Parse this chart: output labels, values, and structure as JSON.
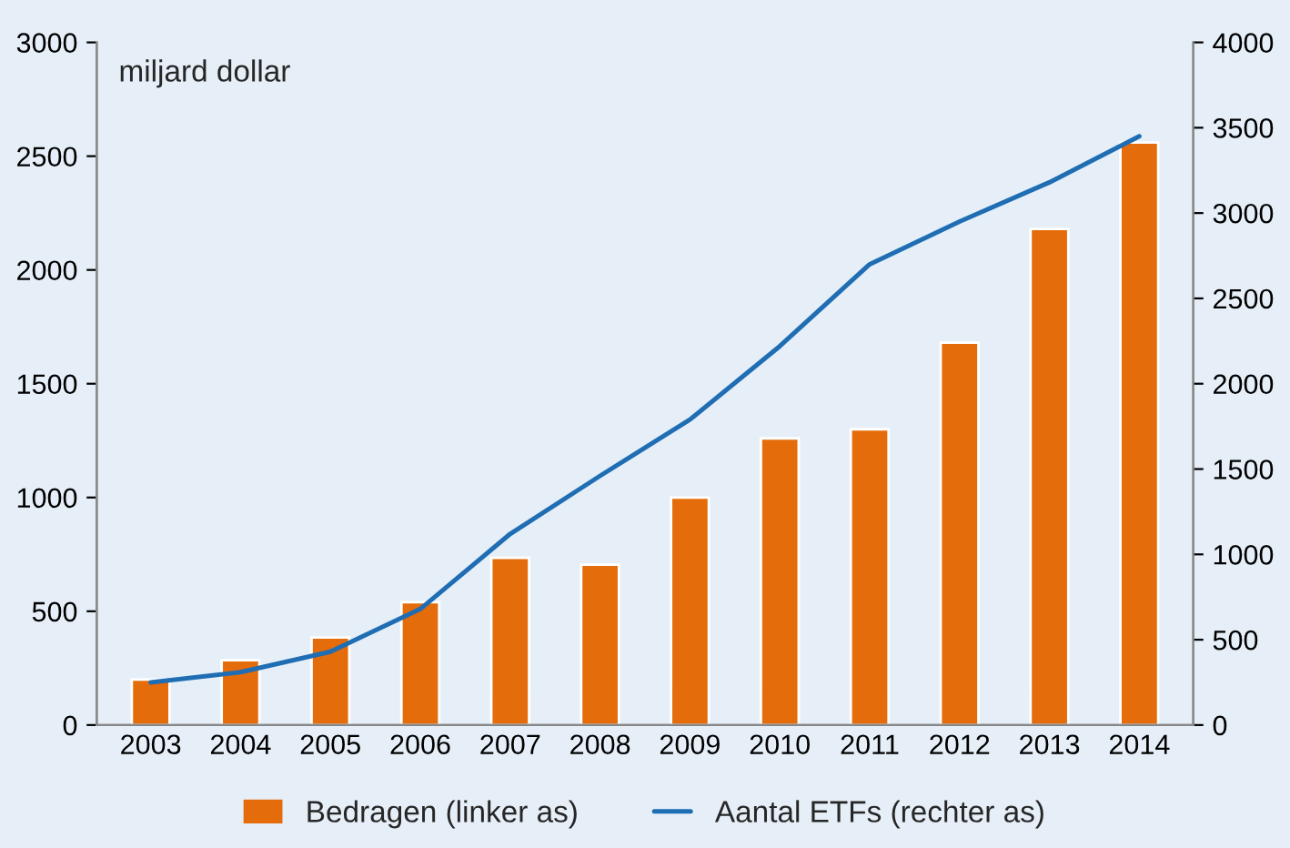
{
  "chart_data": {
    "type": "bar",
    "ylabel": "miljard dollar",
    "categories": [
      "2003",
      "2004",
      "2005",
      "2006",
      "2007",
      "2008",
      "2009",
      "2010",
      "2011",
      "2012",
      "2013",
      "2014"
    ],
    "series": [
      {
        "name": "Bedragen (linker as)",
        "color": "#e46c0a",
        "values": [
          200,
          285,
          385,
          540,
          735,
          705,
          1000,
          1260,
          1300,
          1680,
          2180,
          2560
        ]
      },
      {
        "name": "Aantal ETFs (rechter as)",
        "type": "line",
        "axis": "y2",
        "color": "#1f6db3",
        "values": [
          250,
          310,
          430,
          680,
          1120,
          1460,
          1790,
          2220,
          2700,
          2950,
          3180,
          3450
        ]
      }
    ],
    "ylim": [
      0,
      3000
    ],
    "yticks": [
      0,
      500,
      1000,
      1500,
      2000,
      2500,
      3000
    ],
    "y2lim": [
      0,
      4000
    ],
    "y2ticks": [
      0,
      500,
      1000,
      1500,
      2000,
      2500,
      3000,
      3500,
      4000
    ],
    "grid": false,
    "legend": "bottom",
    "marker": "none",
    "line_style": "solid"
  }
}
